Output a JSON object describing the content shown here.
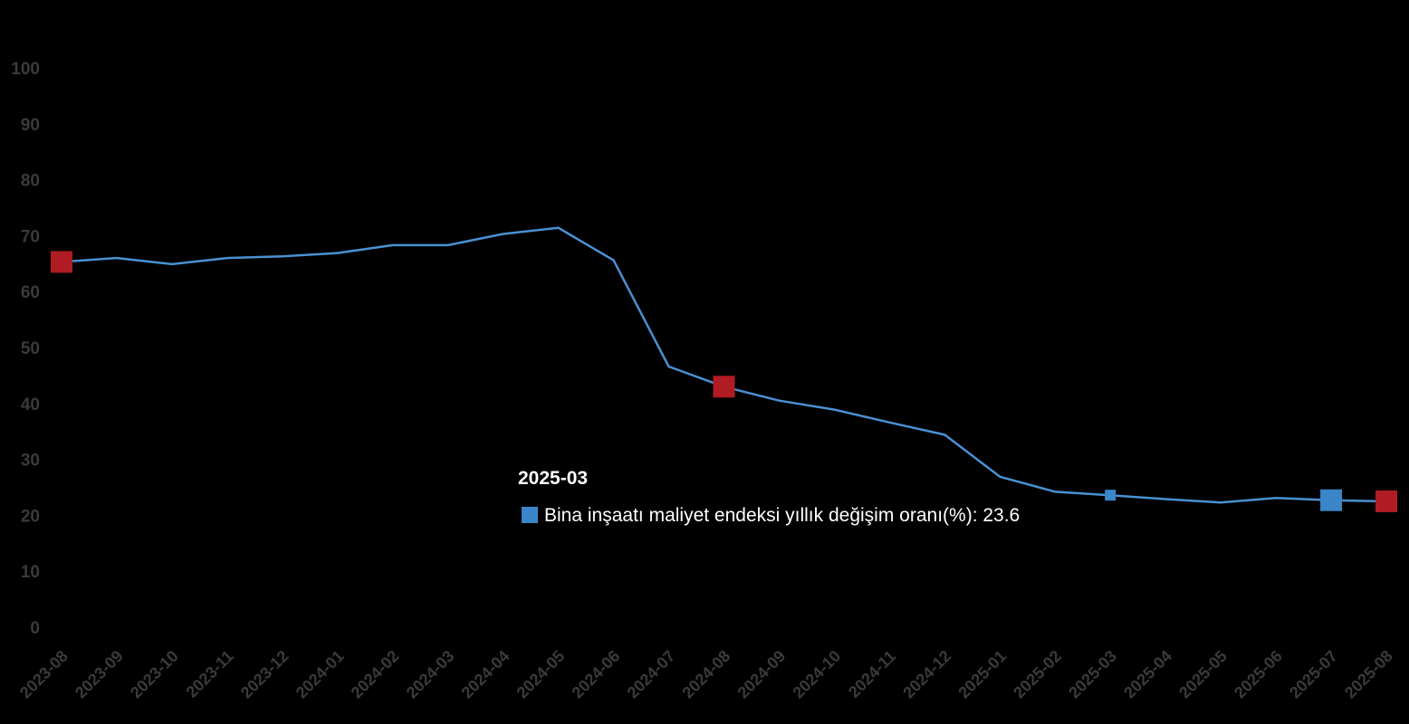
{
  "chart_data": {
    "type": "line",
    "categories": [
      "2023-08",
      "2023-09",
      "2023-10",
      "2023-11",
      "2023-12",
      "2024-01",
      "2024-02",
      "2024-03",
      "2024-04",
      "2024-05",
      "2024-06",
      "2024-07",
      "2024-08",
      "2024-09",
      "2024-10",
      "2024-11",
      "2024-12",
      "2025-01",
      "2025-02",
      "2025-03",
      "2025-04",
      "2025-05",
      "2025-06",
      "2025-07",
      "2025-08"
    ],
    "series": [
      {
        "name": "Bina inşaatı maliyet endeksi yıllık değişim oranı(%)",
        "values": [
          65.3,
          66.0,
          64.9,
          66.0,
          66.3,
          66.9,
          68.3,
          68.3,
          70.3,
          71.4,
          65.6,
          46.6,
          43.0,
          40.5,
          38.9,
          36.6,
          34.4,
          26.9,
          24.2,
          23.6,
          22.9,
          22.3,
          23.1,
          22.7,
          22.5
        ],
        "color": "#4a90d2"
      }
    ],
    "highlighted_points": [
      {
        "category": "2023-08",
        "color": "#b01c24"
      },
      {
        "category": "2024-08",
        "color": "#b01c24"
      },
      {
        "category": "2025-07",
        "color": "#3a86c8"
      },
      {
        "category": "2025-08",
        "color": "#b01c24"
      }
    ],
    "ylim": [
      0,
      100
    ],
    "yticks": [
      0,
      10,
      20,
      30,
      40,
      50,
      60,
      70,
      80,
      90,
      100
    ],
    "grid": false,
    "legend": "none",
    "tooltip": {
      "title": "2025-03",
      "label": "Bina inşaatı maliyet endeksi yıllık değişim oranı(%): 23.6",
      "category": "2025-03",
      "swatch_color": "#3a86c8"
    }
  }
}
